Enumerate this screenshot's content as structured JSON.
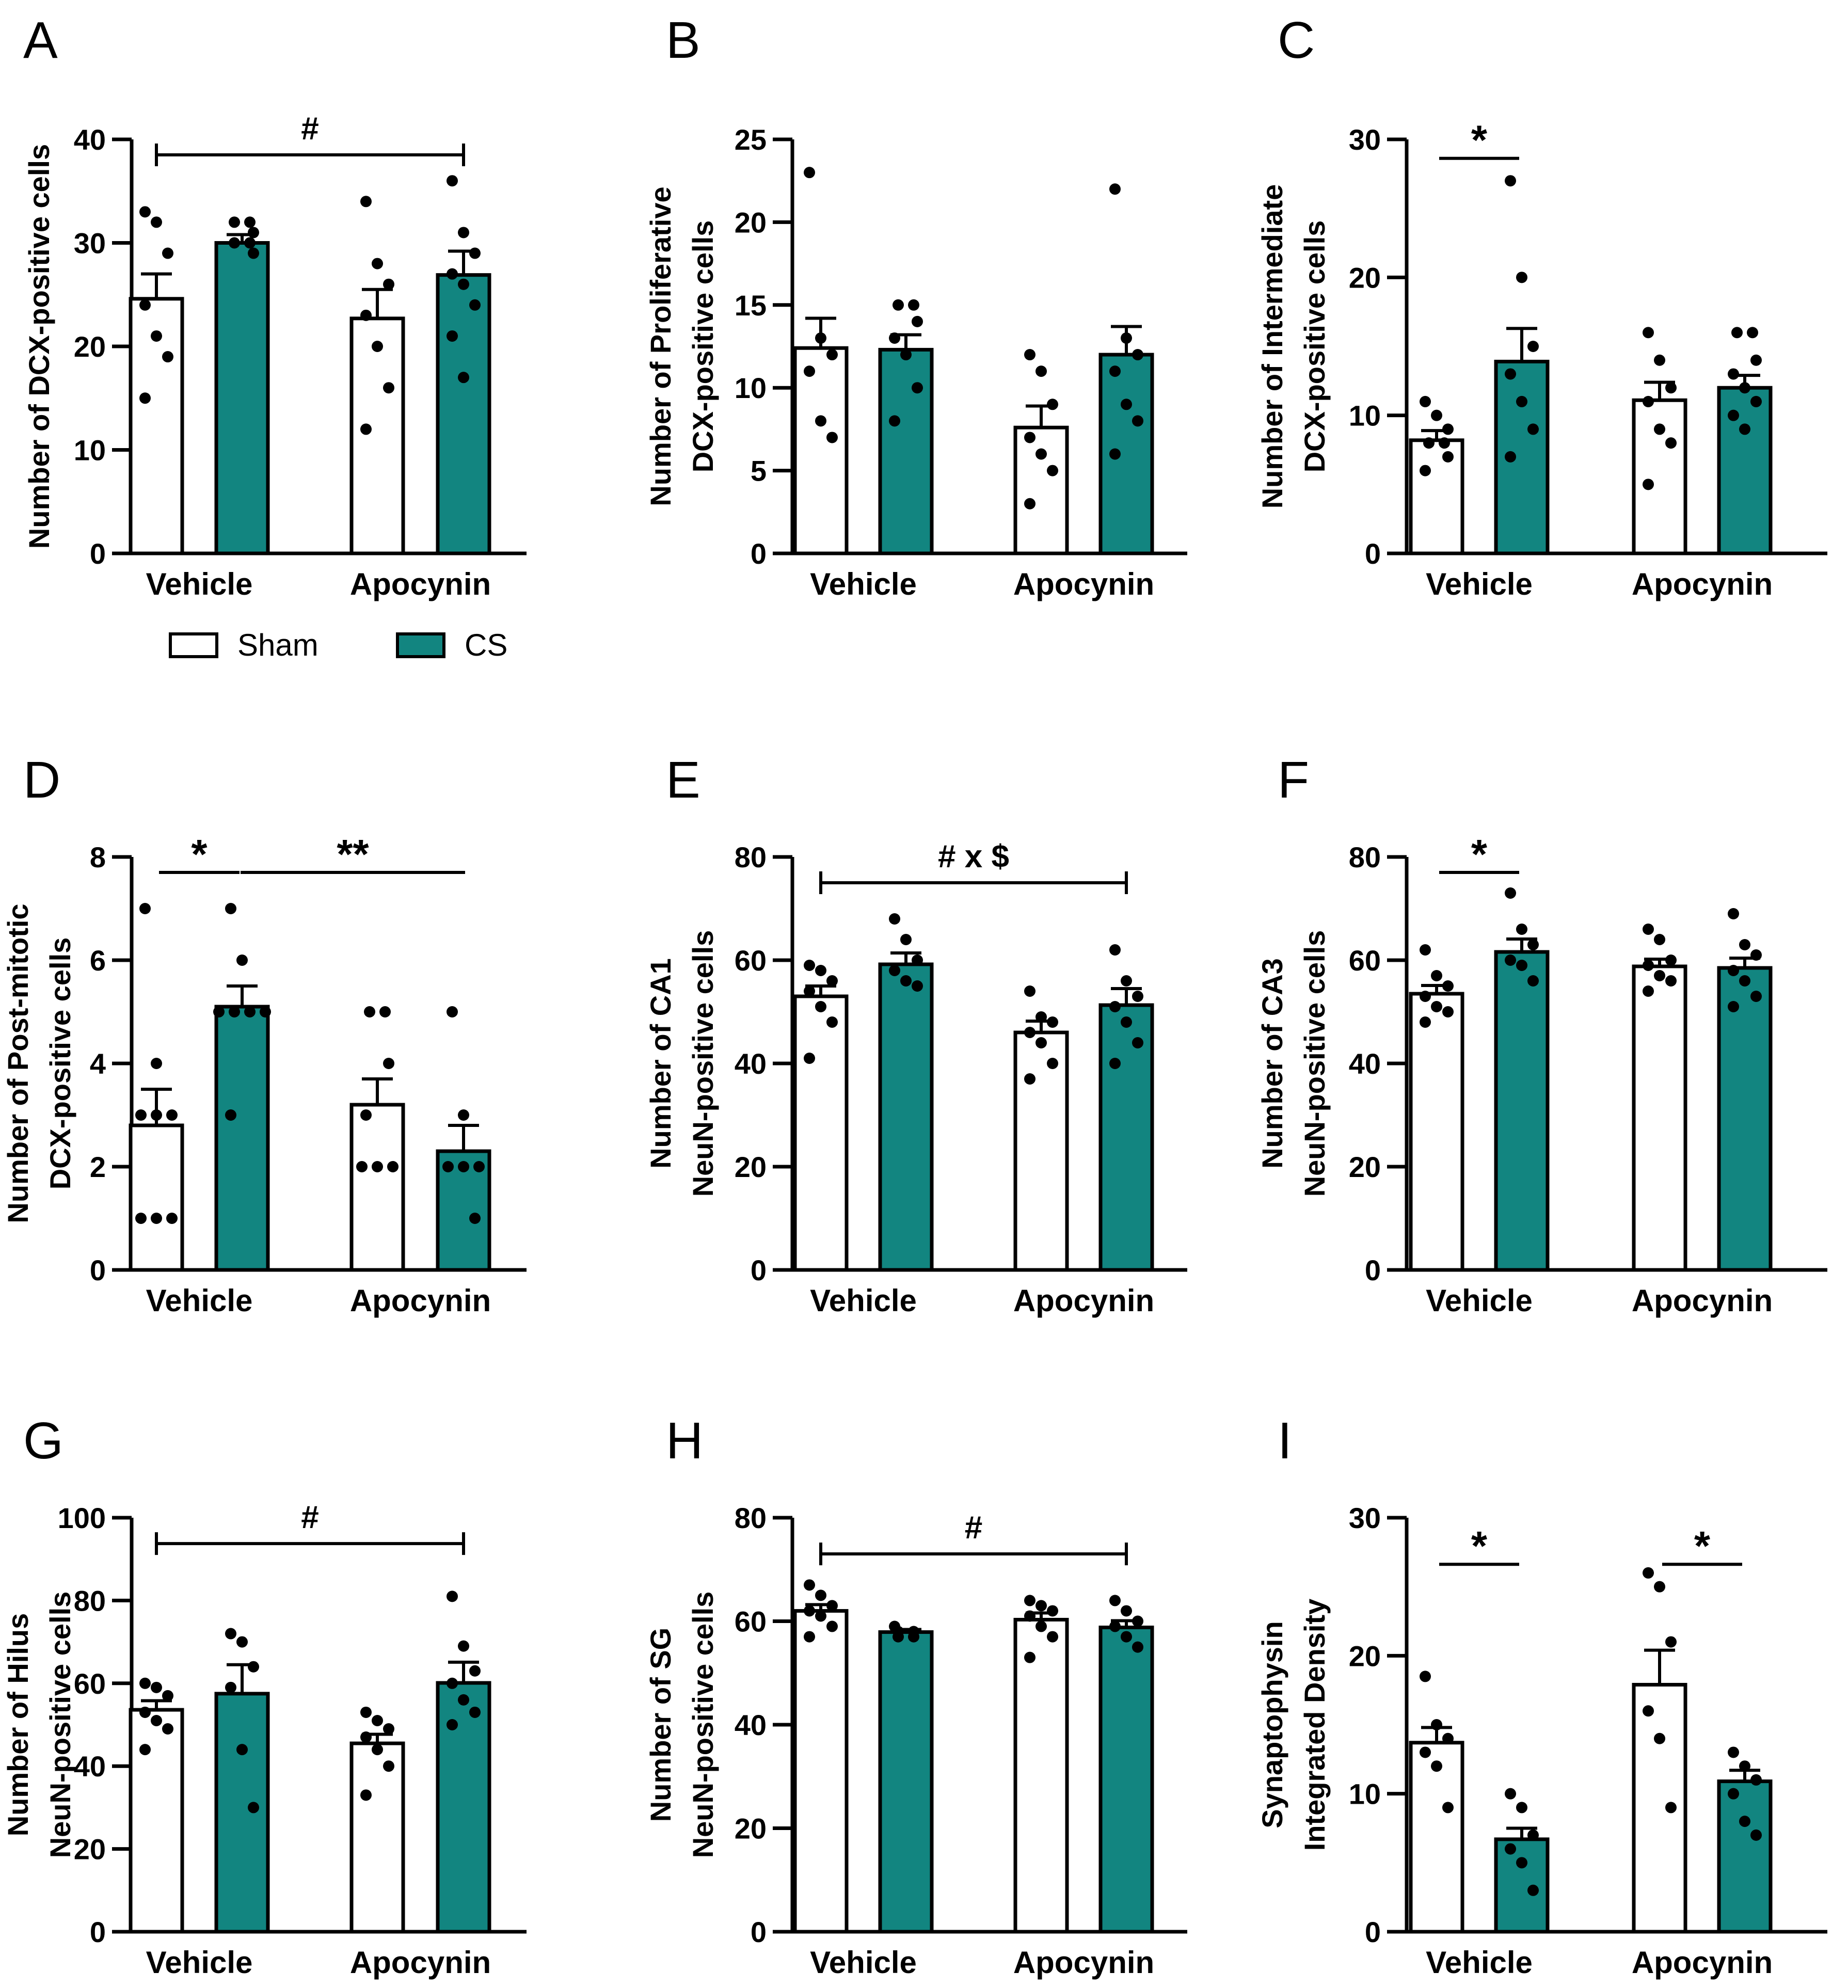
{
  "legend": {
    "placement": "below-panel-A",
    "items": [
      {
        "label": "Sham",
        "color": "#ffffff"
      },
      {
        "label": "CS",
        "color": "#128580"
      }
    ]
  },
  "colors": {
    "sham": "#ffffff",
    "cs": "#128580",
    "ink": "#000000"
  },
  "chart_data": [
    {
      "panel": "A",
      "type": "bar",
      "ylabel": [
        "Number of DCX-positive cells"
      ],
      "ylim": [
        0,
        40
      ],
      "yticks": [
        0,
        10,
        20,
        30,
        40
      ],
      "categories": [
        "Vehicle",
        "Apocynin"
      ],
      "series": [
        {
          "name": "Sham",
          "values": [
            24.6,
            22.7
          ],
          "sem": [
            2.4,
            2.8
          ],
          "points": [
            [
              33,
              32,
              29,
              24,
              21,
              19,
              15
            ],
            [
              34,
              28,
              26,
              23,
              20,
              16,
              12
            ]
          ]
        },
        {
          "name": "CS",
          "values": [
            30.0,
            26.9
          ],
          "sem": [
            0.8,
            2.3
          ],
          "points": [
            [
              32,
              32,
              31,
              30,
              30,
              29
            ],
            [
              36,
              31,
              29,
              27,
              26,
              24,
              21,
              17
            ]
          ]
        }
      ],
      "annotations": [
        {
          "text": "#",
          "from": [
            0,
            0
          ],
          "to": [
            1,
            1
          ],
          "y": 39.0
        }
      ]
    },
    {
      "panel": "B",
      "type": "bar",
      "ylabel": [
        "Number of Proliferative",
        "DCX-positive cells"
      ],
      "ylim": [
        0,
        25
      ],
      "yticks": [
        0,
        5,
        10,
        15,
        20,
        25
      ],
      "categories": [
        "Vehicle",
        "Apocynin"
      ],
      "series": [
        {
          "name": "Sham",
          "values": [
            12.4,
            7.6
          ],
          "sem": [
            1.8,
            1.3
          ],
          "points": [
            [
              23,
              13,
              12,
              11,
              8,
              7
            ],
            [
              12,
              11,
              9,
              7,
              6,
              5,
              3
            ]
          ]
        },
        {
          "name": "CS",
          "values": [
            12.3,
            12.0
          ],
          "sem": [
            0.9,
            1.7
          ],
          "points": [
            [
              15,
              15,
              14,
              13,
              12,
              10,
              8
            ],
            [
              22,
              13,
              12,
              11,
              9,
              8,
              6
            ]
          ]
        }
      ],
      "annotations": []
    },
    {
      "panel": "C",
      "type": "bar",
      "ylabel": [
        "Number of Intermediate",
        "DCX-positive cells"
      ],
      "ylim": [
        0,
        30
      ],
      "yticks": [
        0,
        10,
        20,
        30
      ],
      "categories": [
        "Vehicle",
        "Apocynin"
      ],
      "series": [
        {
          "name": "Sham",
          "values": [
            8.2,
            11.1
          ],
          "sem": [
            0.7,
            1.3
          ],
          "points": [
            [
              11,
              10,
              9,
              8,
              8,
              7,
              6
            ],
            [
              16,
              14,
              12,
              11,
              9,
              8,
              5
            ]
          ]
        },
        {
          "name": "CS",
          "values": [
            13.9,
            12.0
          ],
          "sem": [
            2.4,
            0.9
          ],
          "points": [
            [
              27,
              20,
              15,
              13,
              11,
              9,
              7
            ],
            [
              16,
              16,
              14,
              13,
              12,
              11,
              10,
              9
            ]
          ]
        }
      ],
      "annotations": [
        {
          "text": "*",
          "from": [
            0,
            0
          ],
          "to": [
            0,
            1
          ],
          "y": 29.0
        }
      ]
    },
    {
      "panel": "D",
      "type": "bar",
      "ylabel": [
        "Number of Post-mitotic",
        "DCX-positive cells"
      ],
      "ylim": [
        0,
        8
      ],
      "yticks": [
        0,
        2,
        4,
        6,
        8
      ],
      "categories": [
        "Vehicle",
        "Apocynin"
      ],
      "series": [
        {
          "name": "Sham",
          "values": [
            2.8,
            3.2
          ],
          "sem": [
            0.7,
            0.5
          ],
          "points": [
            [
              7,
              4,
              3,
              3,
              3,
              1,
              1,
              1
            ],
            [
              5,
              5,
              4,
              3,
              2,
              2,
              2
            ]
          ]
        },
        {
          "name": "CS",
          "values": [
            5.1,
            2.3
          ],
          "sem": [
            0.4,
            0.5
          ],
          "points": [
            [
              7,
              6,
              5,
              5,
              5,
              5,
              3
            ],
            [
              5,
              3,
              2,
              2,
              2,
              1
            ]
          ]
        }
      ],
      "annotations": [
        {
          "text": "*",
          "from": [
            0,
            0
          ],
          "to": [
            0,
            1
          ],
          "y": 7.8
        },
        {
          "text": "**",
          "from": [
            0,
            1
          ],
          "to": [
            1,
            1
          ],
          "y": 7.8
        }
      ]
    },
    {
      "panel": "E",
      "type": "bar",
      "ylabel": [
        "Number of CA1",
        "NeuN-positive cells"
      ],
      "ylim": [
        0,
        80
      ],
      "yticks": [
        0,
        20,
        40,
        60,
        80
      ],
      "categories": [
        "Vehicle",
        "Apocynin"
      ],
      "series": [
        {
          "name": "Sham",
          "values": [
            53.0,
            46.0
          ],
          "sem": [
            2.0,
            2.2
          ],
          "points": [
            [
              59,
              58,
              56,
              54,
              51,
              48,
              41
            ],
            [
              54,
              49,
              48,
              46,
              44,
              40,
              37
            ]
          ]
        },
        {
          "name": "CS",
          "values": [
            59.2,
            51.3
          ],
          "sem": [
            2.2,
            3.2
          ],
          "points": [
            [
              68,
              64,
              60,
              58,
              56,
              55
            ],
            [
              62,
              56,
              53,
              51,
              48,
              44,
              40
            ]
          ]
        }
      ],
      "annotations": [
        {
          "text": "# x $",
          "from": [
            0,
            0
          ],
          "to": [
            1,
            1
          ],
          "y": 76.0
        }
      ]
    },
    {
      "panel": "F",
      "type": "bar",
      "ylabel": [
        "Number of CA3",
        "NeuN-positive cells"
      ],
      "ylim": [
        0,
        80
      ],
      "yticks": [
        0,
        20,
        40,
        60,
        80
      ],
      "categories": [
        "Vehicle",
        "Apocynin"
      ],
      "series": [
        {
          "name": "Sham",
          "values": [
            53.5,
            58.8
          ],
          "sem": [
            1.6,
            1.4
          ],
          "points": [
            [
              62,
              57,
              55,
              53,
              51,
              50,
              48
            ],
            [
              66,
              64,
              60,
              59,
              57,
              56,
              54
            ]
          ]
        },
        {
          "name": "CS",
          "values": [
            61.6,
            58.5
          ],
          "sem": [
            2.5,
            1.9
          ],
          "points": [
            [
              73,
              66,
              63,
              60,
              59,
              56
            ],
            [
              69,
              63,
              61,
              58,
              56,
              53,
              51
            ]
          ]
        }
      ],
      "annotations": [
        {
          "text": "*",
          "from": [
            0,
            0
          ],
          "to": [
            0,
            1
          ],
          "y": 78.0
        }
      ]
    },
    {
      "panel": "G",
      "type": "bar",
      "ylabel": [
        "Number of Hilus",
        "NeuN-positive cells"
      ],
      "ylim": [
        0,
        100
      ],
      "yticks": [
        0,
        20,
        40,
        60,
        80,
        100
      ],
      "categories": [
        "Vehicle",
        "Apocynin"
      ],
      "series": [
        {
          "name": "Sham",
          "values": [
            53.6,
            45.5
          ],
          "sem": [
            2.2,
            2.2
          ],
          "points": [
            [
              60,
              59,
              57,
              53,
              51,
              49,
              44
            ],
            [
              53,
              51,
              49,
              47,
              44,
              40,
              33
            ]
          ]
        },
        {
          "name": "CS",
          "values": [
            57.5,
            60.1
          ],
          "sem": [
            7.0,
            5.0
          ],
          "points": [
            [
              72,
              70,
              64,
              59,
              44,
              30
            ],
            [
              81,
              69,
              63,
              60,
              56,
              53,
              50
            ]
          ]
        }
      ],
      "annotations": [
        {
          "text": "#",
          "from": [
            0,
            0
          ],
          "to": [
            1,
            1
          ],
          "y": 95.0
        }
      ]
    },
    {
      "panel": "H",
      "type": "bar",
      "ylabel": [
        "Number of SG",
        "NeuN-positive cells"
      ],
      "ylim": [
        0,
        80
      ],
      "yticks": [
        0,
        20,
        40,
        60,
        80
      ],
      "categories": [
        "Vehicle",
        "Apocynin"
      ],
      "series": [
        {
          "name": "Sham",
          "values": [
            62.0,
            60.3
          ],
          "sem": [
            1.2,
            1.3
          ],
          "points": [
            [
              67,
              65,
              63,
              62,
              61,
              59,
              57
            ],
            [
              64,
              63,
              62,
              61,
              59,
              57,
              53
            ]
          ]
        },
        {
          "name": "CS",
          "values": [
            57.9,
            58.8
          ],
          "sem": [
            0.5,
            1.3
          ],
          "points": [
            [
              59,
              58,
              58,
              57,
              57
            ],
            [
              64,
              62,
              60,
              59,
              57,
              55
            ]
          ]
        }
      ],
      "annotations": [
        {
          "text": "#",
          "from": [
            0,
            0
          ],
          "to": [
            1,
            1
          ],
          "y": 74.0
        }
      ]
    },
    {
      "panel": "I",
      "type": "bar",
      "ylabel": [
        "Synaptophysin",
        "Integrated Density"
      ],
      "ylim": [
        0,
        30
      ],
      "yticks": [
        0,
        10,
        20,
        30
      ],
      "categories": [
        "Vehicle",
        "Apocynin"
      ],
      "series": [
        {
          "name": "Sham",
          "values": [
            13.7,
            17.9
          ],
          "sem": [
            1.1,
            2.5
          ],
          "points": [
            [
              18.5,
              15,
              14,
              13,
              12,
              9
            ],
            [
              26,
              25,
              21,
              16,
              14,
              9
            ]
          ]
        },
        {
          "name": "CS",
          "values": [
            6.7,
            10.9
          ],
          "sem": [
            0.8,
            0.8
          ],
          "points": [
            [
              10,
              9,
              7,
              6,
              5,
              3
            ],
            [
              13,
              12,
              11,
              10,
              8,
              7
            ]
          ]
        }
      ],
      "annotations": [
        {
          "text": "*",
          "from": [
            0,
            0
          ],
          "to": [
            0,
            1
          ],
          "y": 27.0
        },
        {
          "text": "*",
          "from": [
            1,
            0
          ],
          "to": [
            1,
            1
          ],
          "y": 27.0
        }
      ]
    }
  ]
}
